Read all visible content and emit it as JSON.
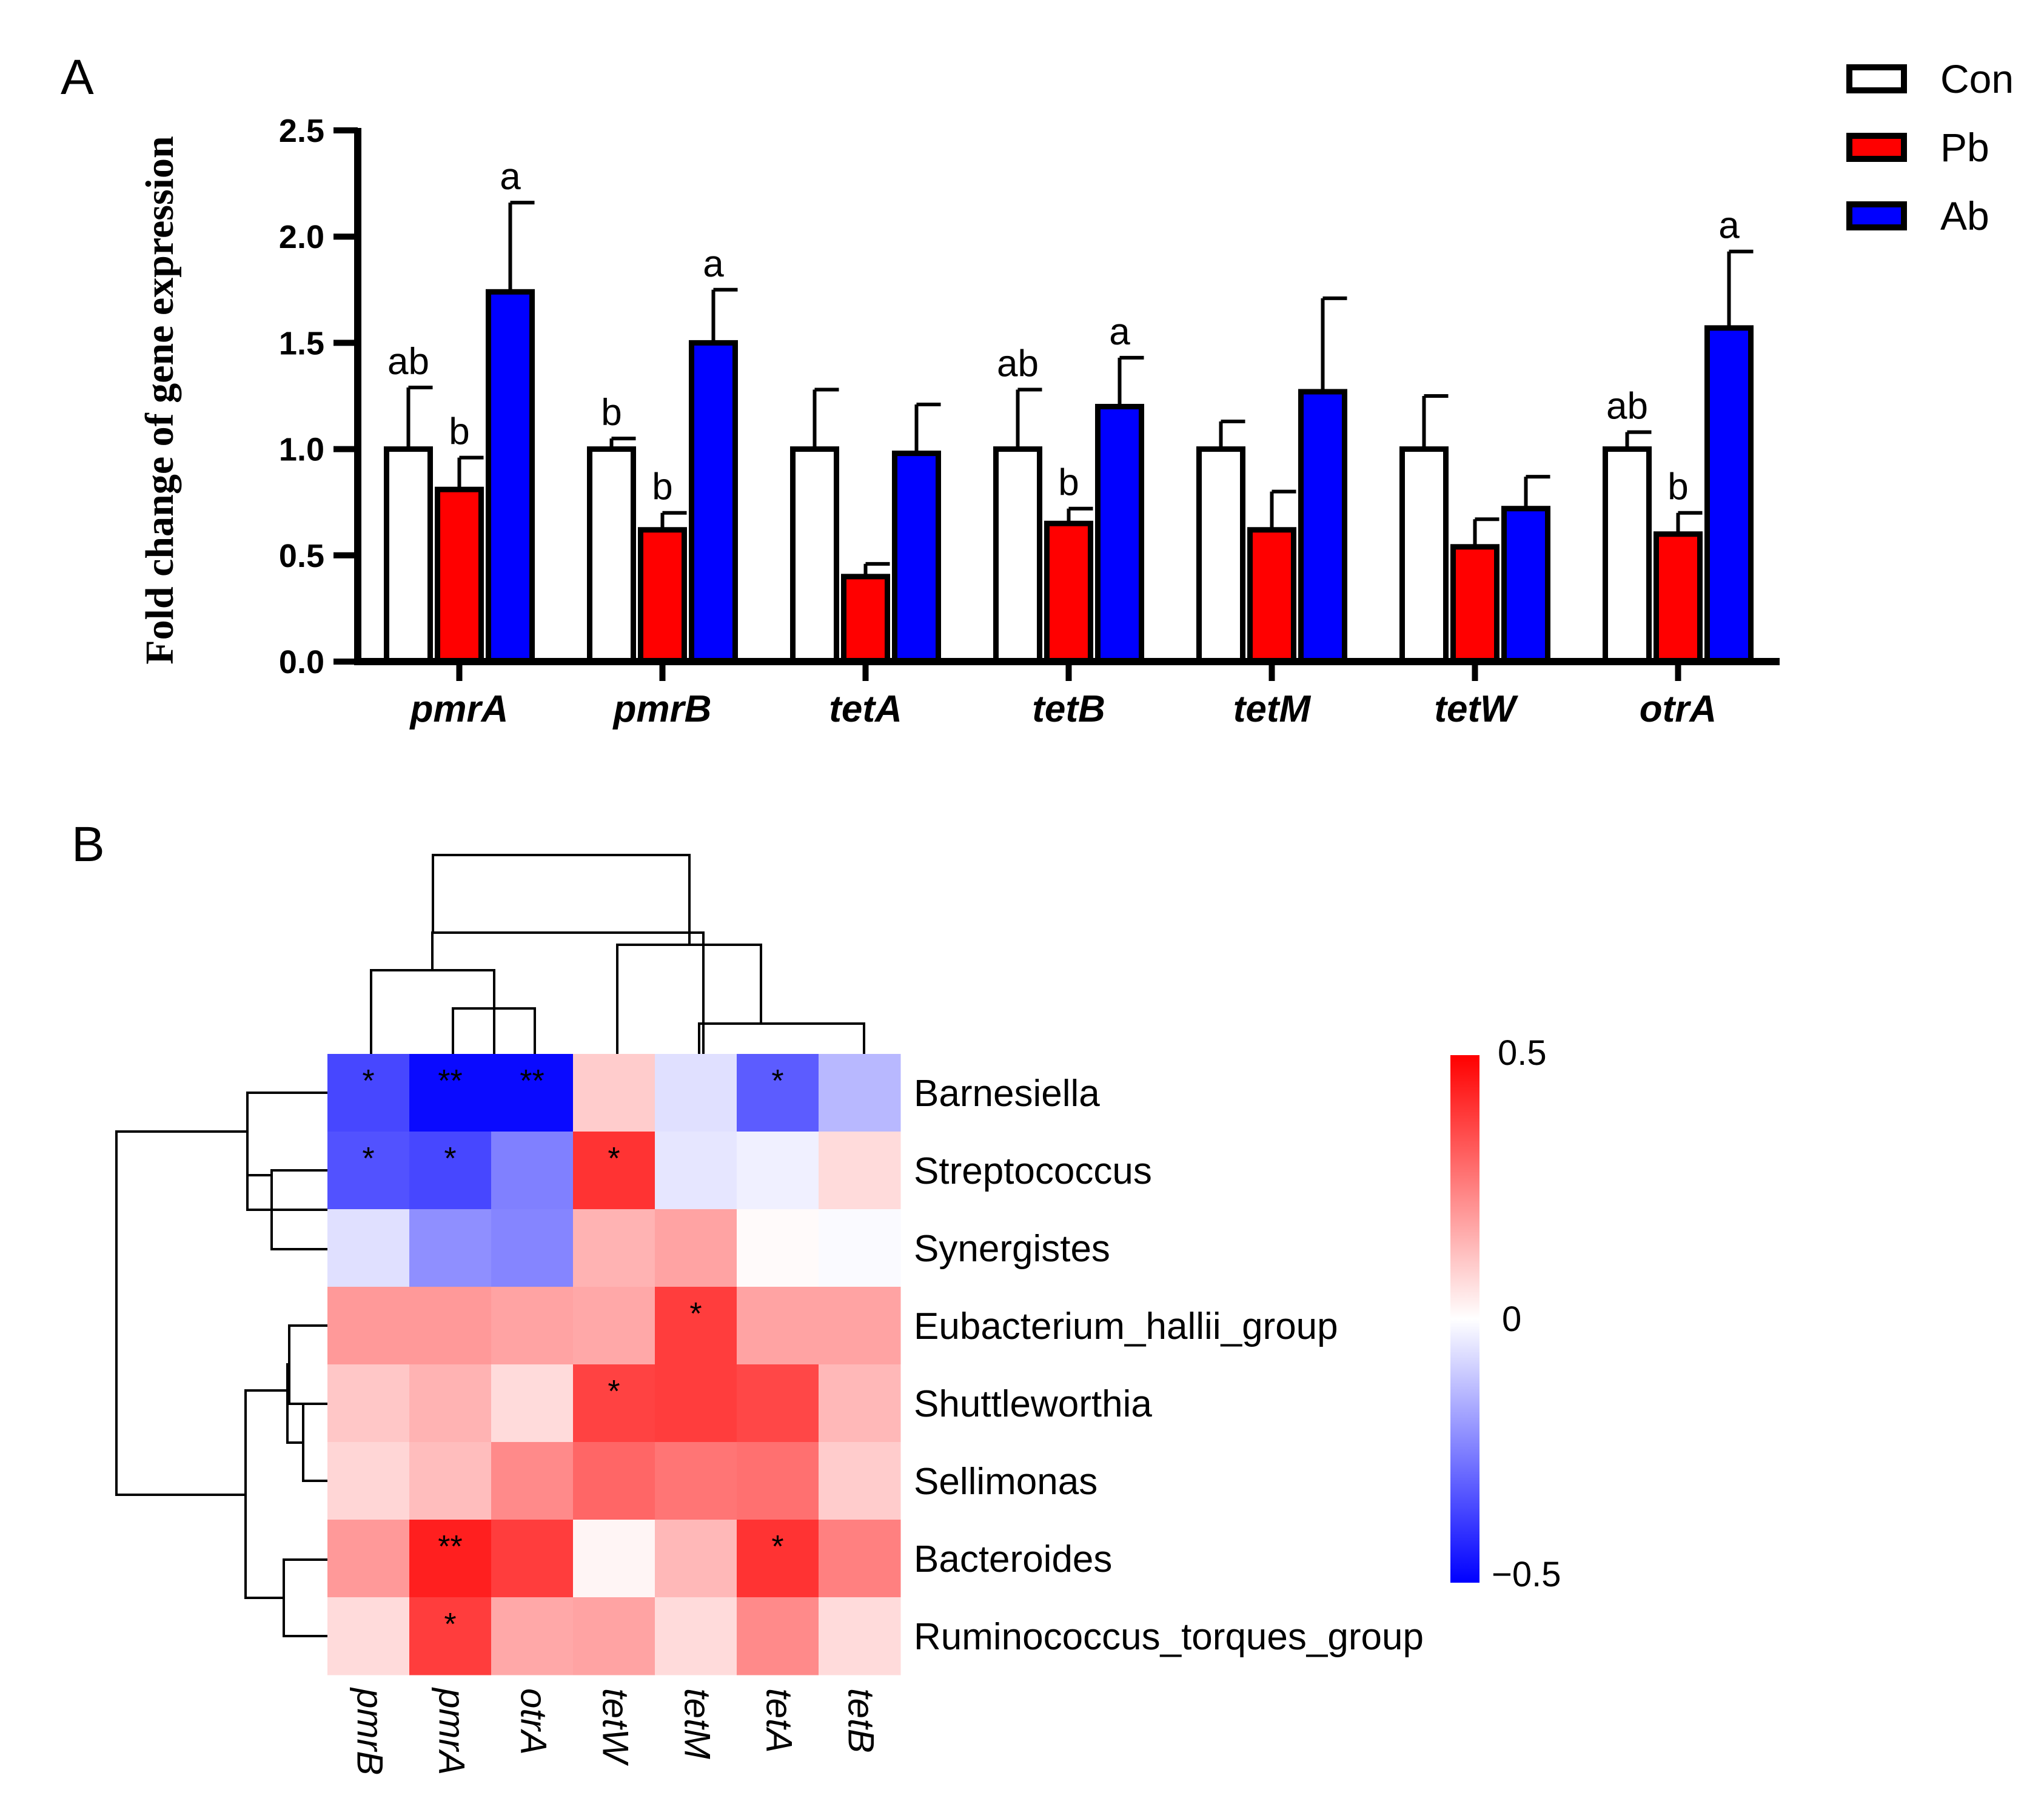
{
  "chart_data": [
    {
      "type": "bar",
      "panel_label": "A",
      "title": "",
      "xlabel": "",
      "ylabel": "Fold change of gene expression",
      "ylim": [
        0,
        2.5
      ],
      "yticks": [
        "0.0",
        "0.5",
        "1.0",
        "1.5",
        "2.0",
        "2.5"
      ],
      "categories": [
        "pmrA",
        "pmrB",
        "tetA",
        "tetB",
        "tetM",
        "tetW",
        "otrA"
      ],
      "legend_position": "top-right",
      "series": [
        {
          "name": "Con",
          "color": "#ffffff",
          "values": [
            1.0,
            1.0,
            1.0,
            1.0,
            1.0,
            1.0,
            1.0
          ],
          "errors": [
            0.29,
            0.05,
            0.28,
            0.28,
            0.13,
            0.25,
            0.08
          ],
          "labels": [
            "ab",
            "b",
            "",
            "ab",
            "",
            "",
            "ab"
          ]
        },
        {
          "name": "Pb",
          "color": "#ff0000",
          "values": [
            0.81,
            0.62,
            0.4,
            0.65,
            0.62,
            0.54,
            0.6
          ],
          "errors": [
            0.15,
            0.08,
            0.06,
            0.07,
            0.18,
            0.13,
            0.1
          ],
          "labels": [
            "b",
            "b",
            "",
            "b",
            "",
            "",
            "b"
          ]
        },
        {
          "name": "Ab",
          "color": "#0000ff",
          "values": [
            1.74,
            1.5,
            0.98,
            1.2,
            1.27,
            0.72,
            1.57
          ],
          "errors": [
            0.42,
            0.25,
            0.23,
            0.23,
            0.44,
            0.15,
            0.36
          ],
          "labels": [
            "a",
            "a",
            "",
            "a",
            "",
            "",
            "a"
          ]
        }
      ]
    },
    {
      "type": "heatmap",
      "panel_label": "B",
      "title": "",
      "rows": [
        "Barnesiella",
        "Streptococcus",
        "Synergistes",
        "Eubacterium_hallii_group",
        "Shuttleworthia",
        "Sellimonas",
        "Bacteroides",
        "Ruminococcus_torques_group"
      ],
      "columns": [
        "pmrB",
        "pmrA",
        "otrA",
        "tetW",
        "tetM",
        "tetA",
        "tetB"
      ],
      "values": [
        [
          -0.36,
          -0.48,
          -0.48,
          0.1,
          -0.06,
          -0.32,
          -0.14
        ],
        [
          -0.34,
          -0.36,
          -0.25,
          0.4,
          -0.05,
          -0.03,
          0.07
        ],
        [
          -0.06,
          -0.22,
          -0.24,
          0.15,
          0.18,
          0.01,
          -0.01
        ],
        [
          0.2,
          0.2,
          0.18,
          0.17,
          0.38,
          0.18,
          0.18
        ],
        [
          0.11,
          0.15,
          0.07,
          0.37,
          0.38,
          0.36,
          0.14
        ],
        [
          0.08,
          0.13,
          0.23,
          0.3,
          0.27,
          0.28,
          0.1
        ],
        [
          0.2,
          0.44,
          0.38,
          0.02,
          0.14,
          0.4,
          0.25
        ],
        [
          0.07,
          0.38,
          0.17,
          0.18,
          0.07,
          0.23,
          0.07
        ]
      ],
      "significance": [
        [
          "*",
          "**",
          "**",
          "",
          "",
          "*",
          ""
        ],
        [
          "*",
          "*",
          "",
          "*",
          "",
          "",
          ""
        ],
        [
          "",
          "",
          "",
          "",
          "",
          "",
          ""
        ],
        [
          "",
          "",
          "",
          "",
          "*",
          "",
          ""
        ],
        [
          "",
          "",
          "",
          "*",
          "",
          "",
          ""
        ],
        [
          "",
          "",
          "",
          "",
          "",
          "",
          ""
        ],
        [
          "",
          "**",
          "",
          "",
          "",
          "*",
          ""
        ],
        [
          "",
          "*",
          "",
          "",
          "",
          "",
          ""
        ]
      ],
      "colorbar": {
        "min": -0.5,
        "max": 0.5,
        "labels": [
          "0.5",
          "0",
          "−0.5"
        ],
        "low_color": "#0000ff",
        "mid_color": "#ffffff",
        "high_color": "#ff0000"
      }
    }
  ]
}
